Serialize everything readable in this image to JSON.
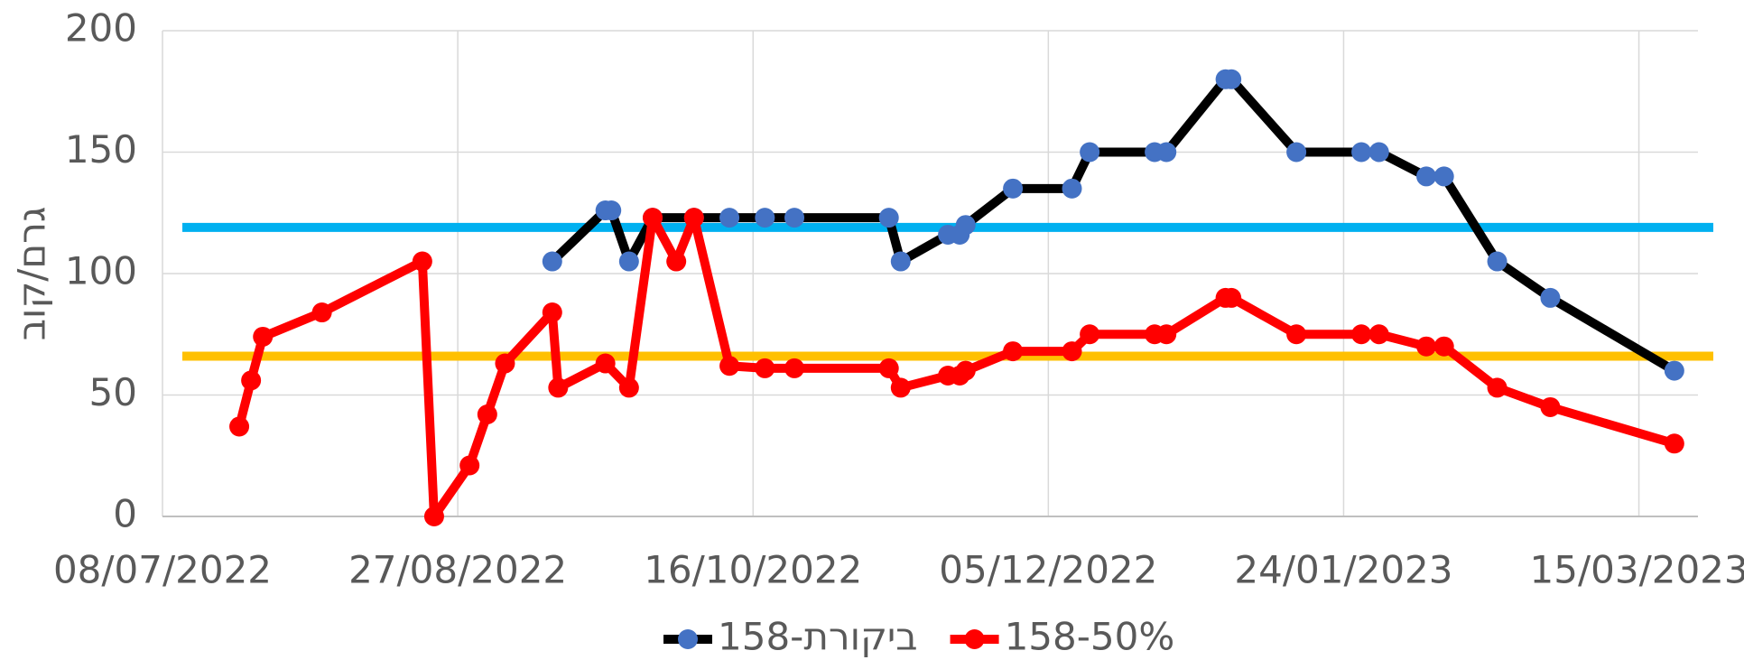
{
  "chart_data": {
    "type": "line",
    "y_label": "גרם/קוב",
    "xlim": [
      "2022-07-08",
      "2023-03-25"
    ],
    "xticks": [
      {
        "value": "2022-07-08",
        "label": "08/07/2022"
      },
      {
        "value": "2022-08-27",
        "label": "27/08/2022"
      },
      {
        "value": "2022-10-16",
        "label": "16/10/2022"
      },
      {
        "value": "2022-12-05",
        "label": "05/12/2022"
      },
      {
        "value": "2023-01-24",
        "label": "24/01/2023"
      },
      {
        "value": "2023-03-15",
        "label": "15/03/2023"
      }
    ],
    "ylim": [
      0,
      200
    ],
    "yticks": [
      0,
      50,
      100,
      150,
      200
    ],
    "grid": true,
    "legend": "bottom",
    "reference_lines": [
      {
        "value": 119,
        "color": "#00b0f0"
      },
      {
        "value": 66,
        "color": "#ffc000"
      }
    ],
    "series": [
      {
        "name": "ביקורת-158",
        "color": "#000000",
        "marker_color": "#4472c4",
        "x": [
          "2022-09-12",
          "2022-09-21",
          "2022-09-22",
          "2022-09-25",
          "2022-09-29",
          "2022-10-06",
          "2022-10-12",
          "2022-10-18",
          "2022-10-23",
          "2022-11-08",
          "2022-11-10",
          "2022-11-18",
          "2022-11-20",
          "2022-11-21",
          "2022-11-29",
          "2022-12-09",
          "2022-12-12",
          "2022-12-23",
          "2022-12-25",
          "2023-01-04",
          "2023-01-05",
          "2023-01-16",
          "2023-01-27",
          "2023-01-30",
          "2023-02-07",
          "2023-02-10",
          "2023-02-19",
          "2023-02-28",
          "2023-03-21"
        ],
        "values": [
          105,
          126,
          126,
          105,
          123,
          123,
          123,
          123,
          123,
          123,
          105,
          116,
          116,
          120,
          135,
          135,
          150,
          150,
          150,
          180,
          180,
          150,
          150,
          150,
          140,
          140,
          105,
          90,
          60
        ]
      },
      {
        "name": "158-50%",
        "color": "#ff0000",
        "marker_color": "#ff0000",
        "x": [
          "2022-07-21",
          "2022-07-23",
          "2022-07-25",
          "2022-08-04",
          "2022-08-21",
          "2022-08-23",
          "2022-08-29",
          "2022-09-01",
          "2022-09-04",
          "2022-09-12",
          "2022-09-13",
          "2022-09-21",
          "2022-09-25",
          "2022-09-29",
          "2022-10-03",
          "2022-10-06",
          "2022-10-12",
          "2022-10-18",
          "2022-10-23",
          "2022-11-08",
          "2022-11-10",
          "2022-11-18",
          "2022-11-20",
          "2022-11-21",
          "2022-11-29",
          "2022-12-09",
          "2022-12-12",
          "2022-12-23",
          "2022-12-25",
          "2023-01-04",
          "2023-01-05",
          "2023-01-16",
          "2023-01-27",
          "2023-01-30",
          "2023-02-07",
          "2023-02-10",
          "2023-02-19",
          "2023-02-28",
          "2023-03-21"
        ],
        "values": [
          37,
          56,
          74,
          84,
          105,
          0,
          21,
          42,
          63,
          84,
          53,
          63,
          53,
          123,
          105,
          123,
          62,
          61,
          61,
          61,
          53,
          58,
          58,
          60,
          68,
          68,
          75,
          75,
          75,
          90,
          90,
          75,
          75,
          75,
          70,
          70,
          53,
          45,
          30
        ]
      }
    ]
  }
}
